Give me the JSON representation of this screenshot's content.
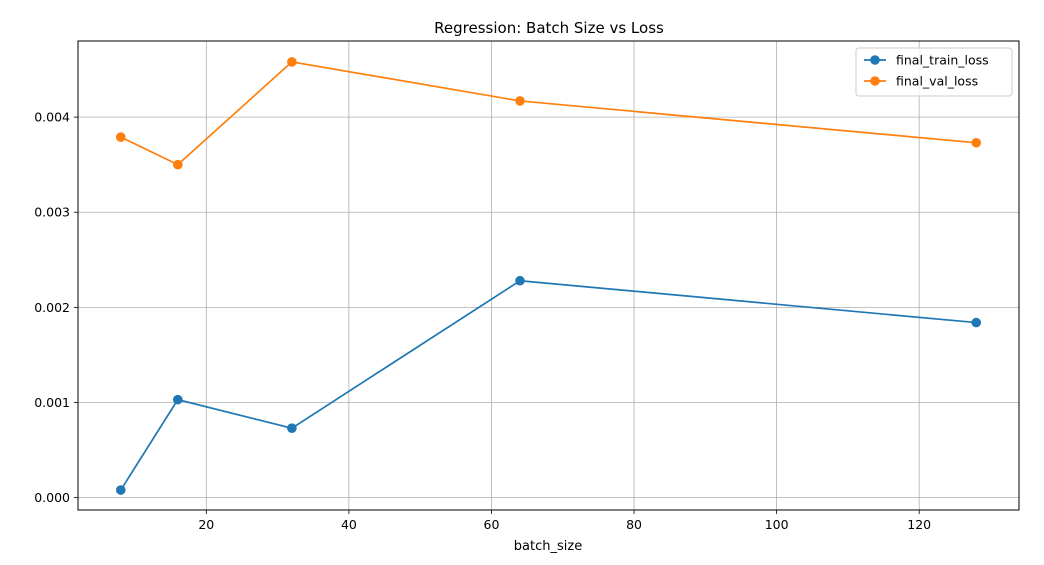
{
  "chart_data": {
    "type": "line",
    "title": "Regression: Batch Size vs Loss",
    "xlabel": "batch_size",
    "ylabel": "",
    "x": [
      8,
      16,
      32,
      64,
      128
    ],
    "series": [
      {
        "name": "final_train_loss",
        "color": "#1f77b4",
        "values": [
          8e-05,
          0.00103,
          0.00073,
          0.00228,
          0.00184
        ]
      },
      {
        "name": "final_val_loss",
        "color": "#ff7f0e",
        "values": [
          0.00379,
          0.0035,
          0.00458,
          0.00417,
          0.00373
        ]
      }
    ],
    "xlim": [
      2,
      134
    ],
    "ylim": [
      -0.00013,
      0.0048
    ],
    "xticks": [
      20,
      40,
      60,
      80,
      100,
      120
    ],
    "yticks": [
      0.0,
      0.001,
      0.002,
      0.003,
      0.004
    ],
    "xtick_labels": [
      "20",
      "40",
      "60",
      "80",
      "100",
      "120"
    ],
    "ytick_labels": [
      "0.000",
      "0.001",
      "0.002",
      "0.003",
      "0.004"
    ],
    "grid": true,
    "legend_position": "top-right",
    "marker": "circle"
  }
}
